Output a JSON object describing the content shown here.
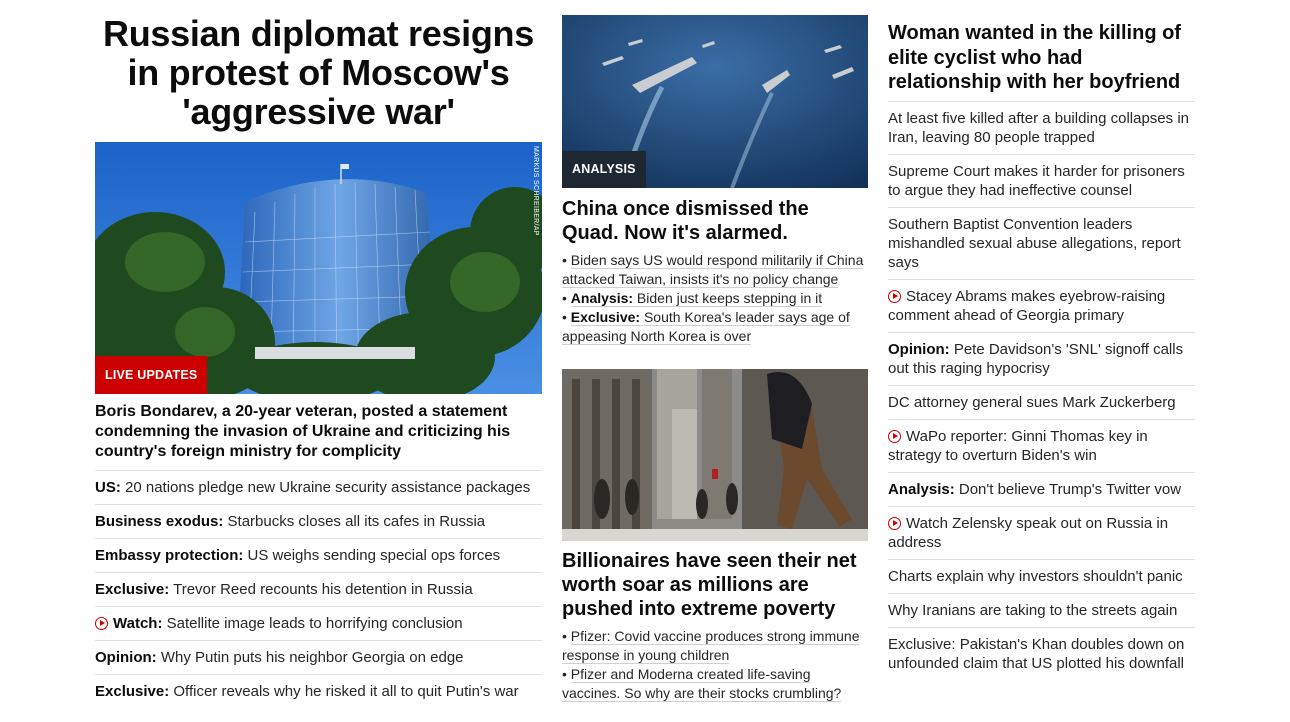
{
  "col1": {
    "headline": "Russian diplomat resigns in protest of Moscow's 'aggressive war'",
    "badge": "LIVE UPDATES",
    "photo_credit": "MARKUS SCHREIBER/AP",
    "lead": "Boris Bondarev, a 20-year veteran, posted a statement condemning the invasion of Ukraine and criticizing his country's foreign ministry for complicity",
    "items": [
      {
        "kicker": "US:",
        "text": " 20 nations pledge new Ukraine security assistance packages",
        "video": false
      },
      {
        "kicker": "Business exodus:",
        "text": " Starbucks closes all its cafes in Russia",
        "video": false
      },
      {
        "kicker": "Embassy protection:",
        "text": " US weighs sending special ops forces",
        "video": false
      },
      {
        "kicker": "Exclusive:",
        "text": " Trevor Reed recounts his detention in Russia",
        "video": false
      },
      {
        "kicker": "Watch:",
        "text": " Satellite image leads to horrifying conclusion",
        "video": true
      },
      {
        "kicker": "Opinion:",
        "text": " Why Putin puts his neighbor Georgia on edge",
        "video": false
      },
      {
        "kicker": "Exclusive:",
        "text": " Officer reveals why he risked it all to quit Putin's war",
        "video": false
      }
    ]
  },
  "col2": {
    "story1": {
      "badge": "ANALYSIS",
      "headline": "China once dismissed the Quad. Now it's alarmed.",
      "bullets": [
        {
          "kicker": "",
          "text": "Biden says US would respond militarily if China attacked Taiwan, insists it's no policy change"
        },
        {
          "kicker": "Analysis:",
          "text": " Biden just keeps stepping in it"
        },
        {
          "kicker": "Exclusive:",
          "text": " South Korea's leader says age of appeasing North Korea is over"
        }
      ]
    },
    "story2": {
      "headline": "Billionaires have seen their net worth soar as millions are pushed into extreme poverty",
      "bullets": [
        {
          "kicker": "",
          "text": "Pfizer: Covid vaccine produces strong immune response in young children"
        },
        {
          "kicker": "",
          "text": "Pfizer and Moderna created life-saving vaccines. So why are their stocks crumbling?"
        }
      ]
    }
  },
  "col3": {
    "headline": "Woman wanted in the killing of elite cyclist who had relationship with her boyfriend",
    "items": [
      {
        "kicker": "",
        "text": "At least five killed after a building collapses in Iran, leaving 80 people trapped",
        "video": false
      },
      {
        "kicker": "",
        "text": "Supreme Court makes it harder for prisoners to argue they had ineffective counsel",
        "video": false
      },
      {
        "kicker": "",
        "text": "Southern Baptist Convention leaders mishandled sexual abuse allegations, report says",
        "video": false
      },
      {
        "kicker": "",
        "text": "Stacey Abrams makes eyebrow-raising comment ahead of Georgia primary",
        "video": true
      },
      {
        "kicker": "Opinion:",
        "text": " Pete Davidson's 'SNL' signoff calls out this raging hypocrisy",
        "video": false
      },
      {
        "kicker": "",
        "text": "DC attorney general sues Mark Zuckerberg",
        "video": false
      },
      {
        "kicker": "",
        "text": "WaPo reporter: Ginni Thomas key in strategy to overturn Biden's win",
        "video": true
      },
      {
        "kicker": "Analysis:",
        "text": " Don't believe Trump's Twitter vow",
        "video": false
      },
      {
        "kicker": "",
        "text": "Watch Zelensky speak out on Russia in address",
        "video": true
      },
      {
        "kicker": "",
        "text": "Charts explain why investors shouldn't panic",
        "video": false
      },
      {
        "kicker": "",
        "text": "Why Iranians are taking to the streets again",
        "video": false
      },
      {
        "kicker": "",
        "text": "Exclusive: Pakistan's Khan doubles down on unfounded claim that US plotted his downfall",
        "video": false
      }
    ]
  }
}
